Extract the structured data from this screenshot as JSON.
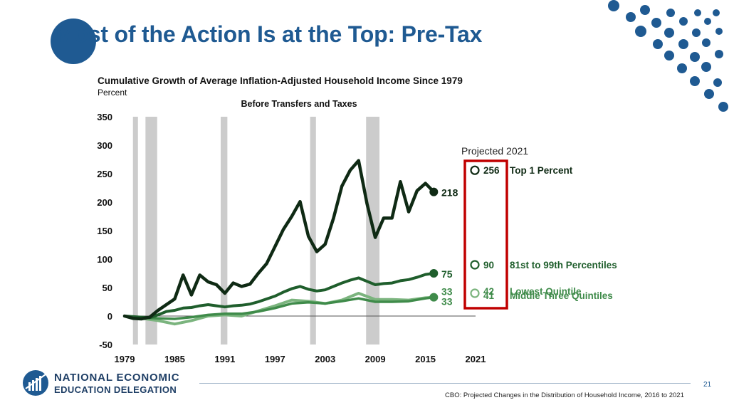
{
  "slide": {
    "title": "Most of the Action Is at the Top: Pre-Tax",
    "page_number": "21",
    "source": "CBO: Projected Changes in the Distribution of Household Income, 2016 to 2021",
    "brand_line1": "NATIONAL ECONOMIC",
    "brand_line2": "EDUCATION DELEGATION"
  },
  "colors": {
    "brand_blue": "#1f5a92",
    "brand_navy": "#1f3f66",
    "highlight_red": "#c00000",
    "top1": "#0f2a14",
    "p81_99": "#1f5e2c",
    "middle": "#3f8b4a",
    "lowest": "#7bb47e",
    "recession": "#cccccc"
  },
  "chart_data": {
    "type": "line",
    "title": "Cumulative Growth of Average Inflation-Adjusted Household Income Since 1979",
    "ylabel": "Percent",
    "subtitle": "Before Transfers and Taxes",
    "xlim": [
      1979,
      2021
    ],
    "ylim": [
      -50,
      350
    ],
    "x_ticks": [
      "1979",
      "1985",
      "1991",
      "1997",
      "2003",
      "2009",
      "2015",
      "2021"
    ],
    "y_ticks": [
      "350",
      "300",
      "250",
      "200",
      "150",
      "100",
      "50",
      "0",
      "-50"
    ],
    "recessions": [
      [
        1980,
        1980.6
      ],
      [
        1981.5,
        1982.9
      ],
      [
        1990.5,
        1991.3
      ],
      [
        2001.2,
        2001.9
      ],
      [
        2007.9,
        2009.5
      ]
    ],
    "projection_label": "Projected 2021",
    "series": [
      {
        "name": "Top 1 Percent",
        "color_key": "top1",
        "x": [
          1979,
          1980,
          1981,
          1982,
          1983,
          1984,
          1985,
          1986,
          1987,
          1988,
          1989,
          1990,
          1991,
          1992,
          1993,
          1994,
          1995,
          1996,
          1997,
          1998,
          1999,
          2000,
          2001,
          2002,
          2003,
          2004,
          2005,
          2006,
          2007,
          2008,
          2009,
          2010,
          2011,
          2012,
          2013,
          2014,
          2015,
          2016
        ],
        "values": [
          0,
          -4,
          -5,
          -2,
          10,
          20,
          30,
          72,
          37,
          72,
          60,
          55,
          40,
          58,
          52,
          56,
          75,
          92,
          122,
          152,
          175,
          201,
          140,
          113,
          126,
          172,
          228,
          256,
          273,
          198,
          138,
          172,
          172,
          236,
          183,
          220,
          233,
          218
        ],
        "end_label": "218",
        "projected": 256
      },
      {
        "name": "81st to 99th Percentiles",
        "color_key": "p81_99",
        "x": [
          1979,
          1981,
          1982,
          1983,
          1984,
          1985,
          1986,
          1987,
          1988,
          1989,
          1990,
          1991,
          1992,
          1993,
          1994,
          1995,
          1996,
          1997,
          1998,
          1999,
          2000,
          2001,
          2002,
          2003,
          2004,
          2005,
          2006,
          2007,
          2008,
          2009,
          2010,
          2011,
          2012,
          2013,
          2014,
          2015,
          2016
        ],
        "values": [
          0,
          -2,
          -3,
          2,
          8,
          10,
          14,
          15,
          18,
          20,
          18,
          16,
          18,
          19,
          21,
          25,
          30,
          35,
          42,
          48,
          52,
          47,
          44,
          46,
          52,
          58,
          63,
          67,
          61,
          55,
          57,
          58,
          62,
          64,
          68,
          73,
          75
        ],
        "end_label": "75",
        "projected": 90
      },
      {
        "name": "Lowest Quintile",
        "color_key": "lowest",
        "x": [
          1979,
          1981,
          1983,
          1985,
          1987,
          1989,
          1991,
          1993,
          1995,
          1997,
          1999,
          2001,
          2003,
          2005,
          2007,
          2009,
          2011,
          2013,
          2015,
          2016
        ],
        "values": [
          0,
          -4,
          -8,
          -14,
          -8,
          0,
          2,
          0,
          9,
          18,
          28,
          26,
          22,
          28,
          40,
          29,
          29,
          28,
          32,
          33
        ],
        "end_label": "33",
        "projected": 42
      },
      {
        "name": "Middle Three Quintiles",
        "color_key": "middle",
        "x": [
          1979,
          1981,
          1983,
          1985,
          1987,
          1989,
          1991,
          1993,
          1995,
          1997,
          1999,
          2001,
          2003,
          2005,
          2007,
          2009,
          2011,
          2013,
          2015,
          2016
        ],
        "values": [
          0,
          -3,
          -4,
          -5,
          -2,
          2,
          4,
          4,
          8,
          14,
          22,
          24,
          22,
          26,
          31,
          25,
          25,
          26,
          31,
          33
        ],
        "end_label": "33",
        "projected": 41
      }
    ]
  }
}
